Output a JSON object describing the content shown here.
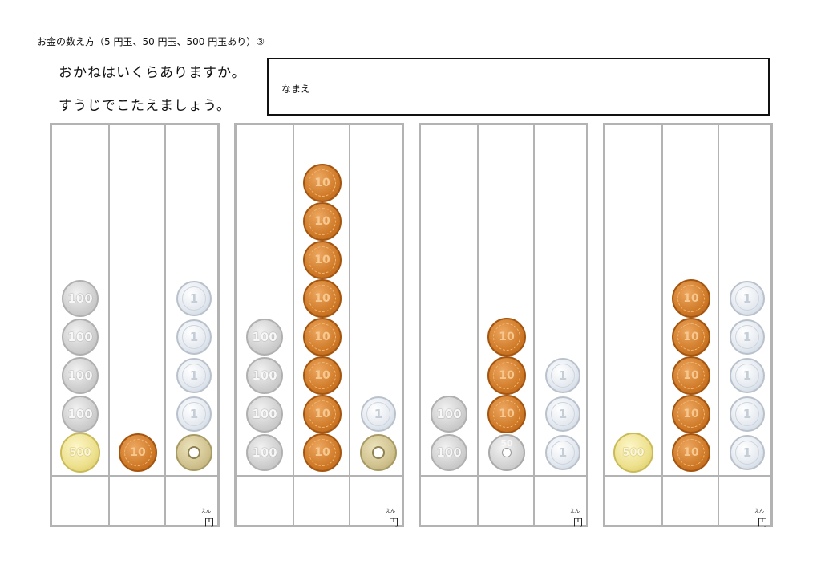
{
  "worksheet": {
    "title": "お金の数え方（5 円玉、50 円玉、500 円玉あり）③",
    "prompt_line1": "おかねはいくらありますか。",
    "prompt_line2": "すうじでこたえましょう。",
    "name_label": "なまえ",
    "yen_label": "円",
    "yen_ruby": "えん"
  },
  "coin_labels": {
    "c100": "100",
    "c10": "10",
    "c1": "1",
    "c500": "500",
    "c50": "50",
    "c5": ""
  },
  "problems": [
    {
      "columns": [
        [
          "c100",
          "c100",
          "c100",
          "c100",
          "c500"
        ],
        [
          "c10"
        ],
        [
          "c1",
          "c1",
          "c1",
          "c1",
          "c5"
        ]
      ]
    },
    {
      "columns": [
        [
          "c100",
          "c100",
          "c100",
          "c100"
        ],
        [
          "c10",
          "c10",
          "c10",
          "c10",
          "c10",
          "c10",
          "c10",
          "c10"
        ],
        [
          "c1",
          "c5"
        ]
      ]
    },
    {
      "columns": [
        [
          "c100",
          "c100"
        ],
        [
          "c10",
          "c10",
          "c10",
          "c50"
        ],
        [
          "c1",
          "c1",
          "c1"
        ]
      ]
    },
    {
      "columns": [
        [
          "c500"
        ],
        [
          "c10",
          "c10",
          "c10",
          "c10",
          "c10"
        ],
        [
          "c1",
          "c1",
          "c1",
          "c1",
          "c1"
        ]
      ]
    }
  ]
}
